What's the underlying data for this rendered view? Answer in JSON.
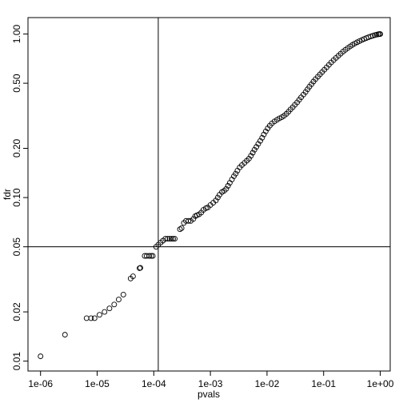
{
  "chart_data": {
    "type": "scatter",
    "title": "",
    "xlabel": "pvals",
    "ylabel": "fdr",
    "x_scale": "log10",
    "y_scale": "log10",
    "xlim": [
      6e-07,
      1.5
    ],
    "ylim": [
      0.0087,
      1.26
    ],
    "x_ticks": [
      1e-06,
      1e-05,
      0.0001,
      0.001,
      0.01,
      0.1,
      1.0
    ],
    "x_tick_labels": [
      "1e-06",
      "1e-05",
      "1e-04",
      "1e-03",
      "1e-02",
      "1e-01",
      "1e+00"
    ],
    "y_ticks": [
      0.01,
      0.02,
      0.05,
      0.1,
      0.2,
      0.5,
      1.0
    ],
    "y_tick_labels": [
      "0.01",
      "0.02",
      "0.05",
      "0.10",
      "0.20",
      "0.50",
      "1.00"
    ],
    "reference_lines": {
      "x": 0.00012,
      "y": 0.05
    },
    "grid": false,
    "marker": "open-circle",
    "points": [
      [
        1e-06,
        0.0107
      ],
      [
        2.7e-06,
        0.0145
      ],
      [
        6.5e-06,
        0.0183
      ],
      [
        7.8e-06,
        0.0183
      ],
      [
        9e-06,
        0.0183
      ],
      [
        1.1e-05,
        0.0192
      ],
      [
        1.35e-05,
        0.02
      ],
      [
        1.65e-05,
        0.021
      ],
      [
        2e-05,
        0.0222
      ],
      [
        2.4e-05,
        0.0238
      ],
      [
        2.9e-05,
        0.0255
      ],
      [
        3.9e-05,
        0.032
      ],
      [
        4.3e-05,
        0.033
      ],
      [
        5.6e-05,
        0.037
      ],
      [
        5.8e-05,
        0.0372
      ],
      [
        6.9e-05,
        0.044
      ],
      [
        7.5e-05,
        0.044
      ],
      [
        8.3e-05,
        0.044
      ],
      [
        9e-05,
        0.044
      ],
      [
        9.6e-05,
        0.044
      ],
      [
        0.00011,
        0.05
      ],
      [
        0.00012,
        0.0515
      ],
      [
        0.000132,
        0.053
      ],
      [
        0.000145,
        0.0545
      ],
      [
        0.00016,
        0.056
      ],
      [
        0.000175,
        0.056
      ],
      [
        0.00019,
        0.056
      ],
      [
        0.000205,
        0.056
      ],
      [
        0.00022,
        0.056
      ],
      [
        0.000235,
        0.056
      ],
      [
        0.00029,
        0.064
      ],
      [
        0.00031,
        0.065
      ],
      [
        0.00034,
        0.07
      ],
      [
        0.00037,
        0.072
      ],
      [
        0.00041,
        0.072
      ],
      [
        0.00045,
        0.072
      ],
      [
        0.0005,
        0.074
      ],
      [
        0.00054,
        0.077
      ],
      [
        0.00058,
        0.078
      ],
      [
        0.00063,
        0.079
      ],
      [
        0.00069,
        0.081
      ],
      [
        0.00075,
        0.084
      ],
      [
        0.00083,
        0.086
      ],
      [
        0.0009,
        0.087
      ],
      [
        0.001,
        0.09
      ],
      [
        0.00112,
        0.093
      ],
      [
        0.00125,
        0.096
      ],
      [
        0.00135,
        0.1
      ],
      [
        0.00145,
        0.104
      ],
      [
        0.0016,
        0.108
      ],
      [
        0.00175,
        0.11
      ],
      [
        0.0019,
        0.113
      ],
      [
        0.00205,
        0.118
      ],
      [
        0.0022,
        0.123
      ],
      [
        0.0024,
        0.129
      ],
      [
        0.0026,
        0.135
      ],
      [
        0.0028,
        0.14
      ],
      [
        0.003,
        0.146
      ],
      [
        0.0033,
        0.153
      ],
      [
        0.0036,
        0.158
      ],
      [
        0.004,
        0.163
      ],
      [
        0.0044,
        0.168
      ],
      [
        0.0048,
        0.173
      ],
      [
        0.0052,
        0.18
      ],
      [
        0.0056,
        0.188
      ],
      [
        0.006,
        0.196
      ],
      [
        0.0065,
        0.204
      ],
      [
        0.007,
        0.213
      ],
      [
        0.0076,
        0.222
      ],
      [
        0.0082,
        0.232
      ],
      [
        0.0088,
        0.243
      ],
      [
        0.0095,
        0.254
      ],
      [
        0.0103,
        0.265
      ],
      [
        0.0112,
        0.275
      ],
      [
        0.0122,
        0.284
      ],
      [
        0.0135,
        0.292
      ],
      [
        0.015,
        0.299
      ],
      [
        0.0165,
        0.305
      ],
      [
        0.0182,
        0.31
      ],
      [
        0.02,
        0.316
      ],
      [
        0.022,
        0.325
      ],
      [
        0.024,
        0.335
      ],
      [
        0.026,
        0.346
      ],
      [
        0.0285,
        0.357
      ],
      [
        0.031,
        0.369
      ],
      [
        0.034,
        0.382
      ],
      [
        0.037,
        0.396
      ],
      [
        0.04,
        0.41
      ],
      [
        0.044,
        0.426
      ],
      [
        0.048,
        0.442
      ],
      [
        0.052,
        0.459
      ],
      [
        0.056,
        0.476
      ],
      [
        0.061,
        0.493
      ],
      [
        0.066,
        0.512
      ],
      [
        0.072,
        0.53
      ],
      [
        0.079,
        0.548
      ],
      [
        0.086,
        0.566
      ],
      [
        0.094,
        0.585
      ],
      [
        0.103,
        0.605
      ],
      [
        0.113,
        0.626
      ],
      [
        0.124,
        0.648
      ],
      [
        0.136,
        0.67
      ],
      [
        0.15,
        0.692
      ],
      [
        0.165,
        0.714
      ],
      [
        0.182,
        0.736
      ],
      [
        0.2,
        0.758
      ],
      [
        0.22,
        0.78
      ],
      [
        0.242,
        0.8
      ],
      [
        0.266,
        0.82
      ],
      [
        0.293,
        0.84
      ],
      [
        0.322,
        0.858
      ],
      [
        0.354,
        0.875
      ],
      [
        0.39,
        0.89
      ],
      [
        0.43,
        0.905
      ],
      [
        0.475,
        0.92
      ],
      [
        0.52,
        0.933
      ],
      [
        0.57,
        0.945
      ],
      [
        0.62,
        0.956
      ],
      [
        0.68,
        0.966
      ],
      [
        0.74,
        0.976
      ],
      [
        0.8,
        0.984
      ],
      [
        0.86,
        0.991
      ],
      [
        0.92,
        0.996
      ],
      [
        0.96,
        0.999
      ],
      [
        1.0,
        1.0
      ]
    ]
  }
}
